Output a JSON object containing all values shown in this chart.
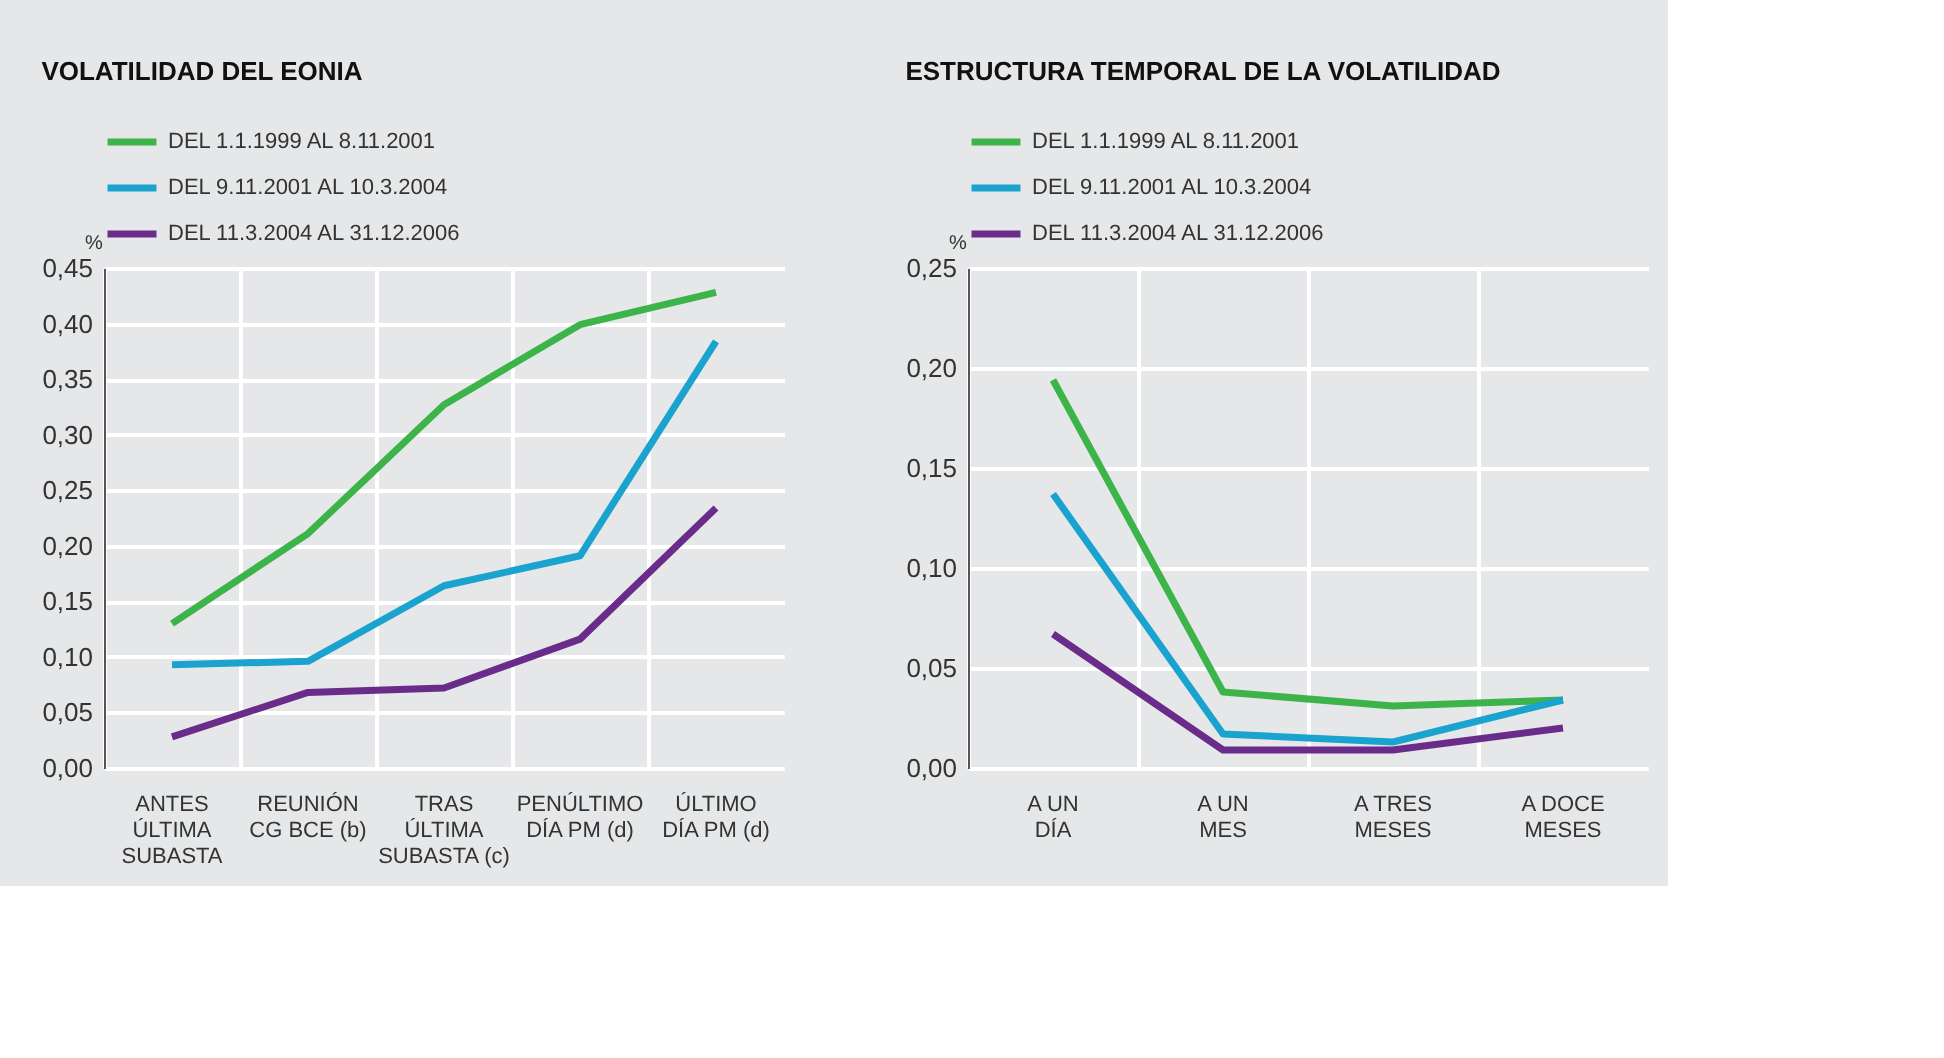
{
  "chart_data": [
    {
      "type": "line",
      "title": "VOLATILIDAD DEL EONIA",
      "ylabel": "%",
      "legend": "top",
      "grid": true,
      "categories": [
        "ANTES\nÚLTIMA\nSUBASTA",
        "REUNIÓN\nCG BCE (b)",
        "TRAS\nÚLTIMA\nSUBASTA (c)",
        "PENÚLTIMO\nDÍA PM (d)",
        "ÚLTIMO\nDÍA PM (d)"
      ],
      "ylim": [
        0,
        0.45
      ],
      "yticks": [
        {
          "value": 0,
          "label": "0,00"
        },
        {
          "value": 0.05,
          "label": "0,05"
        },
        {
          "value": 0.1,
          "label": "0,10"
        },
        {
          "value": 0.15,
          "label": "0,15"
        },
        {
          "value": 0.2,
          "label": "0,20"
        },
        {
          "value": 0.25,
          "label": "0,25"
        },
        {
          "value": 0.3,
          "label": "0,30"
        },
        {
          "value": 0.35,
          "label": "0,35"
        },
        {
          "value": 0.4,
          "label": "0,40"
        },
        {
          "value": 0.45,
          "label": "0,45"
        }
      ],
      "series": [
        {
          "name": "DEL 1.1.1999 AL 8.11.2001",
          "color": "#3cb44a",
          "values": [
            0.13,
            0.211,
            0.327,
            0.399,
            0.428
          ]
        },
        {
          "name": "DEL 9.11.2001 AL 10.3.2004",
          "color": "#1aa3cf",
          "values": [
            0.093,
            0.096,
            0.164,
            0.191,
            0.384
          ]
        },
        {
          "name": "DEL 11.3.2004 AL 31.12.2006",
          "color": "#6a2c8a",
          "values": [
            0.028,
            0.068,
            0.072,
            0.116,
            0.234
          ]
        }
      ]
    },
    {
      "type": "line",
      "title": "ESTRUCTURA TEMPORAL DE LA VOLATILIDAD",
      "ylabel": "%",
      "legend": "top",
      "grid": true,
      "categories": [
        "A UN\nDÍA",
        "A UN\nMES",
        "A TRES\nMESES",
        "A DOCE\nMESES"
      ],
      "ylim": [
        0,
        0.25
      ],
      "yticks": [
        {
          "value": 0,
          "label": "0,00"
        },
        {
          "value": 0.05,
          "label": "0,05"
        },
        {
          "value": 0.1,
          "label": "0,10"
        },
        {
          "value": 0.15,
          "label": "0,15"
        },
        {
          "value": 0.2,
          "label": "0,20"
        },
        {
          "value": 0.25,
          "label": "0,25"
        }
      ],
      "series": [
        {
          "name": "DEL 1.1.1999 AL 8.11.2001",
          "color": "#3cb44a",
          "values": [
            0.194,
            0.038,
            0.031,
            0.034
          ]
        },
        {
          "name": "DEL 9.11.2001 AL 10.3.2004",
          "color": "#1aa3cf",
          "values": [
            0.137,
            0.017,
            0.013,
            0.034
          ]
        },
        {
          "name": "DEL 11.3.2004 AL 31.12.2006",
          "color": "#6a2c8a",
          "values": [
            0.067,
            0.009,
            0.009,
            0.02
          ]
        }
      ]
    }
  ]
}
